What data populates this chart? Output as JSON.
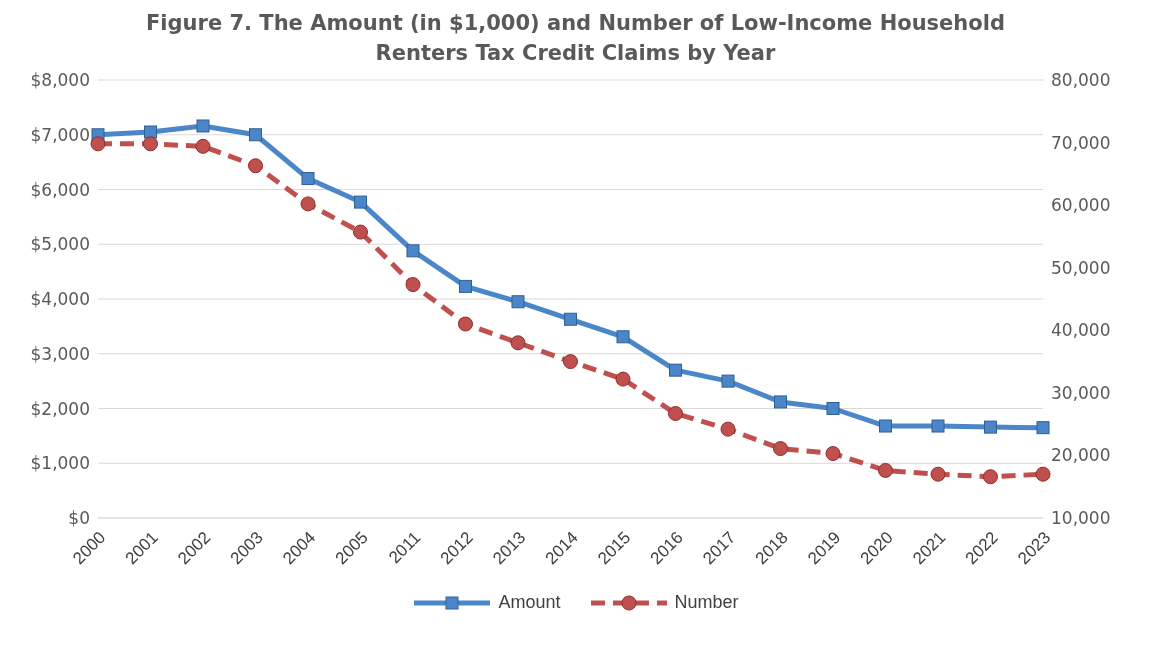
{
  "chart_data": {
    "type": "line",
    "title": "Figure 7.  The Amount (in $1,000) and Number of Low-Income Household Renters Tax Credit Claims by Year",
    "categories": [
      "2000",
      "2001",
      "2002",
      "2003",
      "2004",
      "2005",
      "2011",
      "2012",
      "2013",
      "2014",
      "2015",
      "2016",
      "2017",
      "2018",
      "2019",
      "2020",
      "2021",
      "2022",
      "2023"
    ],
    "series": [
      {
        "name": "Amount",
        "color": "#4a86c8",
        "marker": "square",
        "line_style": "solid",
        "values": [
          7000,
          7050,
          7160,
          7000,
          6200,
          5770,
          4880,
          4230,
          3950,
          3630,
          3310,
          2700,
          2500,
          2120,
          2000,
          1680,
          1680,
          1660,
          1650
        ]
      },
      {
        "name": "Number",
        "color": "#c0504d",
        "marker": "circle",
        "line_style": "dashed",
        "axis": "y2",
        "values": [
          69800,
          69800,
          69400,
          66300,
          60200,
          55700,
          47300,
          41000,
          38000,
          35000,
          32200,
          26700,
          24200,
          21100,
          20300,
          17600,
          17000,
          16600,
          17000
        ]
      }
    ],
    "ylim": [
      0,
      8000
    ],
    "yticks": [
      {
        "value": 0,
        "label": "$0"
      },
      {
        "value": 1000,
        "label": "$1,000"
      },
      {
        "value": 2000,
        "label": "$2,000"
      },
      {
        "value": 3000,
        "label": "$3,000"
      },
      {
        "value": 4000,
        "label": "$4,000"
      },
      {
        "value": 5000,
        "label": "$5,000"
      },
      {
        "value": 6000,
        "label": "$6,000"
      },
      {
        "value": 7000,
        "label": "$7,000"
      },
      {
        "value": 8000,
        "label": "$8,000"
      }
    ],
    "y2lim": [
      10000,
      80000
    ],
    "y2ticks": [
      {
        "value": 10000,
        "label": "10,000"
      },
      {
        "value": 20000,
        "label": "20,000"
      },
      {
        "value": 30000,
        "label": "30,000"
      },
      {
        "value": 40000,
        "label": "40,000"
      },
      {
        "value": 50000,
        "label": "50,000"
      },
      {
        "value": 60000,
        "label": "60,000"
      },
      {
        "value": 70000,
        "label": "70,000"
      },
      {
        "value": 80000,
        "label": "80,000"
      }
    ],
    "grid": "y",
    "legend": "bottom"
  }
}
